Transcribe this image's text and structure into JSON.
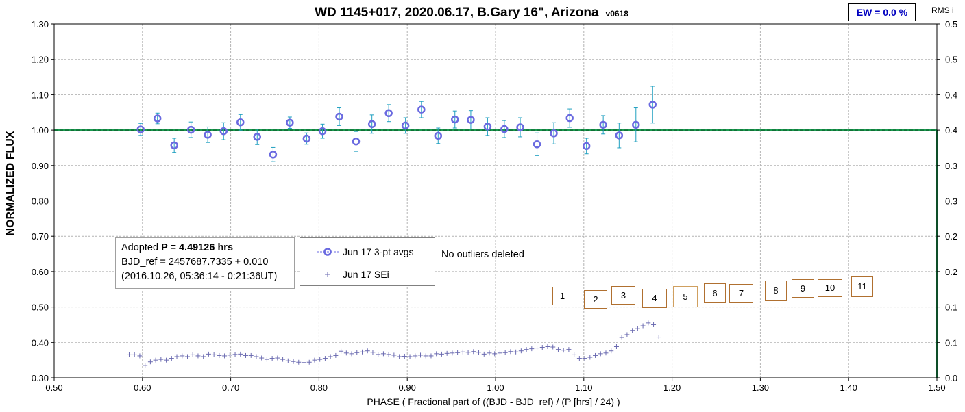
{
  "chart_data": {
    "type": "scatter",
    "title": "WD 1145+017, 2020.06.17, B.Gary 16\", Arizona",
    "version": "v0618",
    "xlabel": "PHASE ( Fractional part of ((BJD - BJD_ref) / (P [hrs] / 24) )",
    "ylabel": "NORMALIZED FLUX",
    "y2label": "RMS i",
    "xlim": [
      0.5,
      1.5
    ],
    "ylim": [
      0.3,
      1.3
    ],
    "y2lim": [
      0.0,
      0.5
    ],
    "x_ticks": [
      "0.50",
      "0.60",
      "0.70",
      "0.80",
      "0.90",
      "1.00",
      "1.10",
      "1.20",
      "1.30",
      "1.40",
      "1.50"
    ],
    "y_ticks": [
      "0.30",
      "0.40",
      "0.50",
      "0.60",
      "0.70",
      "0.80",
      "0.90",
      "1.00",
      "1.10",
      "1.20",
      "1.30"
    ],
    "y2_ticks": [
      "0.0",
      "0.1",
      "0.1",
      "0.2",
      "0.2",
      "0.3",
      "0.3",
      "0.4",
      "0.4",
      "0.5",
      "0.5"
    ],
    "grid": true,
    "reference_line": 1.0,
    "series": [
      {
        "name": "Jun 17 3-pt avgs",
        "marker": "circle",
        "color": "#6a6ae0",
        "errcolor": "#20a0c0",
        "x": [
          0.598,
          0.617,
          0.636,
          0.655,
          0.674,
          0.692,
          0.711,
          0.73,
          0.748,
          0.767,
          0.786,
          0.804,
          0.823,
          0.842,
          0.86,
          0.879,
          0.898,
          0.916,
          0.935,
          0.954,
          0.972,
          0.991,
          1.01,
          1.028,
          1.047,
          1.066,
          1.084,
          1.103,
          1.122,
          1.14,
          1.159,
          1.178
        ],
        "y": [
          1.002,
          1.033,
          0.957,
          1.001,
          0.987,
          0.997,
          1.022,
          0.981,
          0.931,
          1.021,
          0.976,
          0.997,
          1.038,
          0.968,
          1.017,
          1.048,
          1.013,
          1.058,
          0.984,
          1.03,
          1.029,
          1.01,
          1.003,
          1.008,
          0.96,
          0.991,
          1.034,
          0.955,
          1.015,
          0.985,
          1.015,
          1.072
        ],
        "err": [
          0.017,
          0.015,
          0.02,
          0.022,
          0.022,
          0.024,
          0.022,
          0.022,
          0.02,
          0.016,
          0.016,
          0.02,
          0.025,
          0.028,
          0.026,
          0.024,
          0.022,
          0.023,
          0.022,
          0.024,
          0.026,
          0.025,
          0.024,
          0.027,
          0.032,
          0.03,
          0.026,
          0.022,
          0.026,
          0.035,
          0.048,
          0.052
        ]
      },
      {
        "name": "Jun 17 SEi",
        "marker": "plus",
        "color": "#6a6ab0",
        "x": [
          0.585,
          0.591,
          0.597,
          0.603,
          0.609,
          0.615,
          0.621,
          0.627,
          0.633,
          0.639,
          0.645,
          0.651,
          0.657,
          0.663,
          0.669,
          0.675,
          0.681,
          0.687,
          0.693,
          0.699,
          0.705,
          0.711,
          0.717,
          0.723,
          0.729,
          0.735,
          0.741,
          0.747,
          0.753,
          0.759,
          0.765,
          0.771,
          0.777,
          0.783,
          0.789,
          0.795,
          0.801,
          0.807,
          0.813,
          0.819,
          0.825,
          0.831,
          0.837,
          0.843,
          0.849,
          0.855,
          0.861,
          0.867,
          0.873,
          0.879,
          0.885,
          0.891,
          0.897,
          0.903,
          0.909,
          0.915,
          0.921,
          0.927,
          0.933,
          0.939,
          0.945,
          0.951,
          0.957,
          0.963,
          0.969,
          0.975,
          0.981,
          0.987,
          0.993,
          0.999,
          1.005,
          1.011,
          1.017,
          1.023,
          1.029,
          1.035,
          1.041,
          1.047,
          1.053,
          1.059,
          1.065,
          1.071,
          1.077,
          1.083,
          1.089,
          1.095,
          1.101,
          1.107,
          1.113,
          1.119,
          1.125,
          1.131,
          1.137,
          1.143,
          1.149,
          1.155,
          1.161,
          1.167,
          1.173,
          1.179,
          1.185
        ],
        "y": [
          0.365,
          0.365,
          0.362,
          0.335,
          0.345,
          0.35,
          0.352,
          0.35,
          0.355,
          0.36,
          0.362,
          0.36,
          0.365,
          0.362,
          0.36,
          0.367,
          0.365,
          0.363,
          0.362,
          0.364,
          0.366,
          0.367,
          0.363,
          0.363,
          0.36,
          0.356,
          0.352,
          0.355,
          0.356,
          0.352,
          0.348,
          0.346,
          0.344,
          0.343,
          0.344,
          0.35,
          0.352,
          0.355,
          0.36,
          0.363,
          0.375,
          0.37,
          0.368,
          0.371,
          0.373,
          0.376,
          0.372,
          0.366,
          0.368,
          0.366,
          0.364,
          0.36,
          0.361,
          0.36,
          0.362,
          0.364,
          0.362,
          0.362,
          0.368,
          0.367,
          0.369,
          0.37,
          0.371,
          0.373,
          0.372,
          0.374,
          0.372,
          0.367,
          0.37,
          0.368,
          0.37,
          0.371,
          0.374,
          0.373,
          0.376,
          0.38,
          0.382,
          0.384,
          0.386,
          0.388,
          0.387,
          0.38,
          0.378,
          0.38,
          0.365,
          0.355,
          0.355,
          0.358,
          0.363,
          0.368,
          0.37,
          0.376,
          0.388,
          0.414,
          0.422,
          0.434,
          0.439,
          0.447,
          0.455,
          0.45,
          0.415
        ]
      }
    ],
    "annotations": {
      "ew": "EW = 0.0 %",
      "period_line1_prefix": "Adopted ",
      "period_line1_value": "P = 4.49126 hrs",
      "period_line2": "BJD_ref = 2457687.7335 + 0.010",
      "period_line3": "(2016.10.26, 05:36:14 - 0:21:36UT)",
      "note": "No outliers deleted",
      "numbered_boxes": [
        "1",
        "2",
        "3",
        "4",
        "5",
        "6",
        "7",
        "8",
        "9",
        "10",
        "11"
      ]
    },
    "legend": "center-left"
  }
}
